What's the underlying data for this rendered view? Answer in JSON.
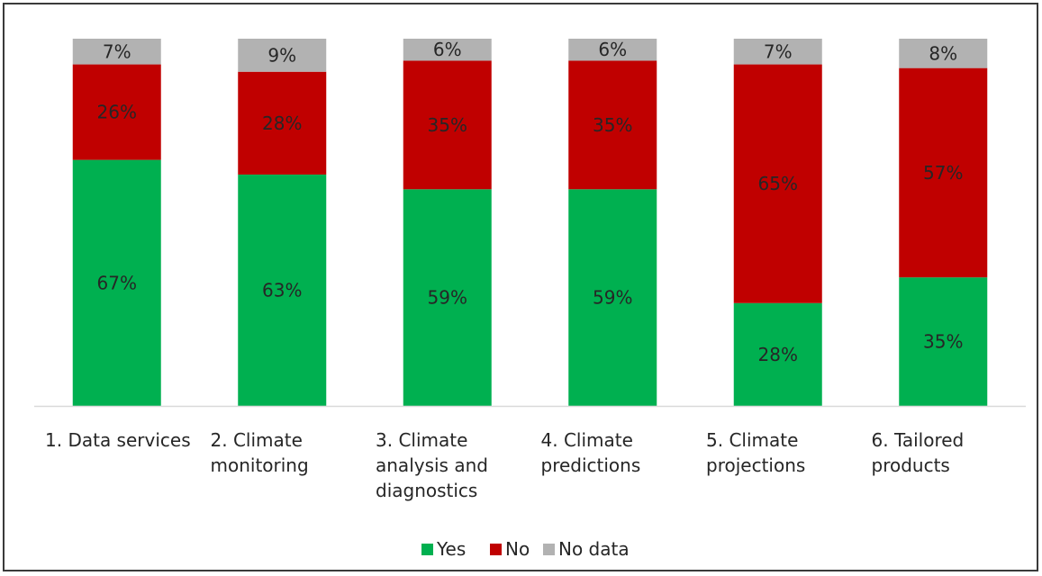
{
  "chart_data": {
    "type": "bar",
    "stacked": true,
    "title": "",
    "xlabel": "",
    "ylabel": "",
    "ylim": [
      0,
      100
    ],
    "grid": false,
    "legend_position": "bottom",
    "categories": [
      "1. Data services",
      "2. Climate monitoring",
      "3. Climate analysis and diagnostics",
      "4. Climate predictions",
      "5. Climate projections",
      "6. Tailored products"
    ],
    "category_lines": [
      [
        "1. Data services"
      ],
      [
        "2. Climate",
        "monitoring"
      ],
      [
        "3. Climate",
        "analysis and",
        "diagnostics"
      ],
      [
        "4. Climate",
        "predictions"
      ],
      [
        "5. Climate",
        "projections"
      ],
      [
        "6. Tailored",
        "products"
      ]
    ],
    "series": [
      {
        "name": "Yes",
        "color": "#00b050",
        "values": [
          67,
          63,
          59,
          59,
          28,
          35
        ]
      },
      {
        "name": "No",
        "color": "#c00000",
        "values": [
          26,
          28,
          35,
          35,
          65,
          57
        ]
      },
      {
        "name": "No data",
        "color": "#b2b2b2",
        "values": [
          7,
          9,
          6,
          6,
          7,
          8
        ]
      }
    ],
    "data_labels": [
      [
        "67%",
        "63%",
        "59%",
        "59%",
        "28%",
        "35%"
      ],
      [
        "26%",
        "28%",
        "35%",
        "35%",
        "65%",
        "57%"
      ],
      [
        "7%",
        "9%",
        "6%",
        "6%",
        "7%",
        "8%"
      ]
    ]
  }
}
